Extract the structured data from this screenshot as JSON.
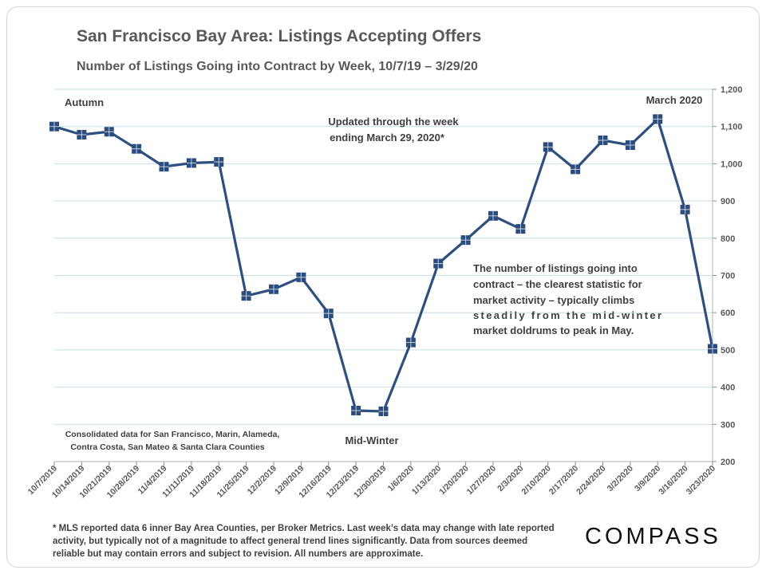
{
  "header": {
    "title": "San Francisco Bay Area: Listings Accepting Offers",
    "subtitle": "Number of Listings Going into Contract by Week, 10/7/19 – 3/29/20"
  },
  "annotations": {
    "autumn": "Autumn",
    "updated_line1": "Updated through the week",
    "updated_line2": "ending March 29, 2020*",
    "march": "March 2020",
    "midwinter": "Mid-Winter",
    "consolidated_line1": "Consolidated data for San Francisco, Marin, Alameda,",
    "consolidated_line2": "Contra Costa, San Mateo & Santa Clara Counties",
    "note_lines": [
      "The number of listings going into",
      "contract – the clearest statistic for",
      "market activity – typically climbs",
      "steadily from the mid-winter",
      "market doldrums to peak in May."
    ]
  },
  "footnote": "* MLS reported data 6 inner Bay Area Counties, per Broker Metrics. Last week’s data may change with late reported activity, but typically not of a magnitude to affect general trend lines significantly. Data from sources deemed reliable but may contain errors and subject to revision. All numbers are approximate.",
  "logo": "COMPASS",
  "colors": {
    "line": "#2f4f7f",
    "marker": "#2b4c7e",
    "grid": "#c6e0e4",
    "text": "#595959"
  },
  "chart_data": {
    "type": "line",
    "title": "San Francisco Bay Area: Listings Accepting Offers",
    "subtitle": "Number of Listings Going into Contract by Week, 10/7/19 – 3/29/20",
    "categories": [
      "10/7/2019",
      "10/14/2019",
      "10/21/2019",
      "10/28/2019",
      "11/4/2019",
      "11/11/2019",
      "11/18/2019",
      "11/25/2019",
      "12/2/2019",
      "12/9/2019",
      "12/16/2019",
      "12/23/2019",
      "12/30/2019",
      "1/6/2020",
      "1/13/2020",
      "1/20/2020",
      "1/27/2020",
      "2/3/2020",
      "2/10/2020",
      "2/17/2020",
      "2/24/2020",
      "3/2/2020",
      "3/9/2020",
      "3/16/2020",
      "3/23/2020"
    ],
    "series": [
      {
        "name": "Listings Accepting Offers",
        "values": [
          1100,
          1078,
          1086,
          1040,
          992,
          1002,
          1005,
          645,
          663,
          695,
          598,
          337,
          335,
          520,
          732,
          795,
          860,
          825,
          1045,
          985,
          1063,
          1050,
          1120,
          877,
          503
        ]
      }
    ],
    "ylim": [
      200,
      1200
    ],
    "yticks": [
      200,
      300,
      400,
      500,
      600,
      700,
      800,
      900,
      1000,
      1100,
      1200
    ],
    "ytick_labels": [
      "200",
      "300",
      "400",
      "500",
      "600",
      "700",
      "800",
      "900",
      "1,000",
      "1,100",
      "1,200"
    ],
    "y_axis_side": "right",
    "grid": true,
    "xlabel": "",
    "ylabel": ""
  }
}
